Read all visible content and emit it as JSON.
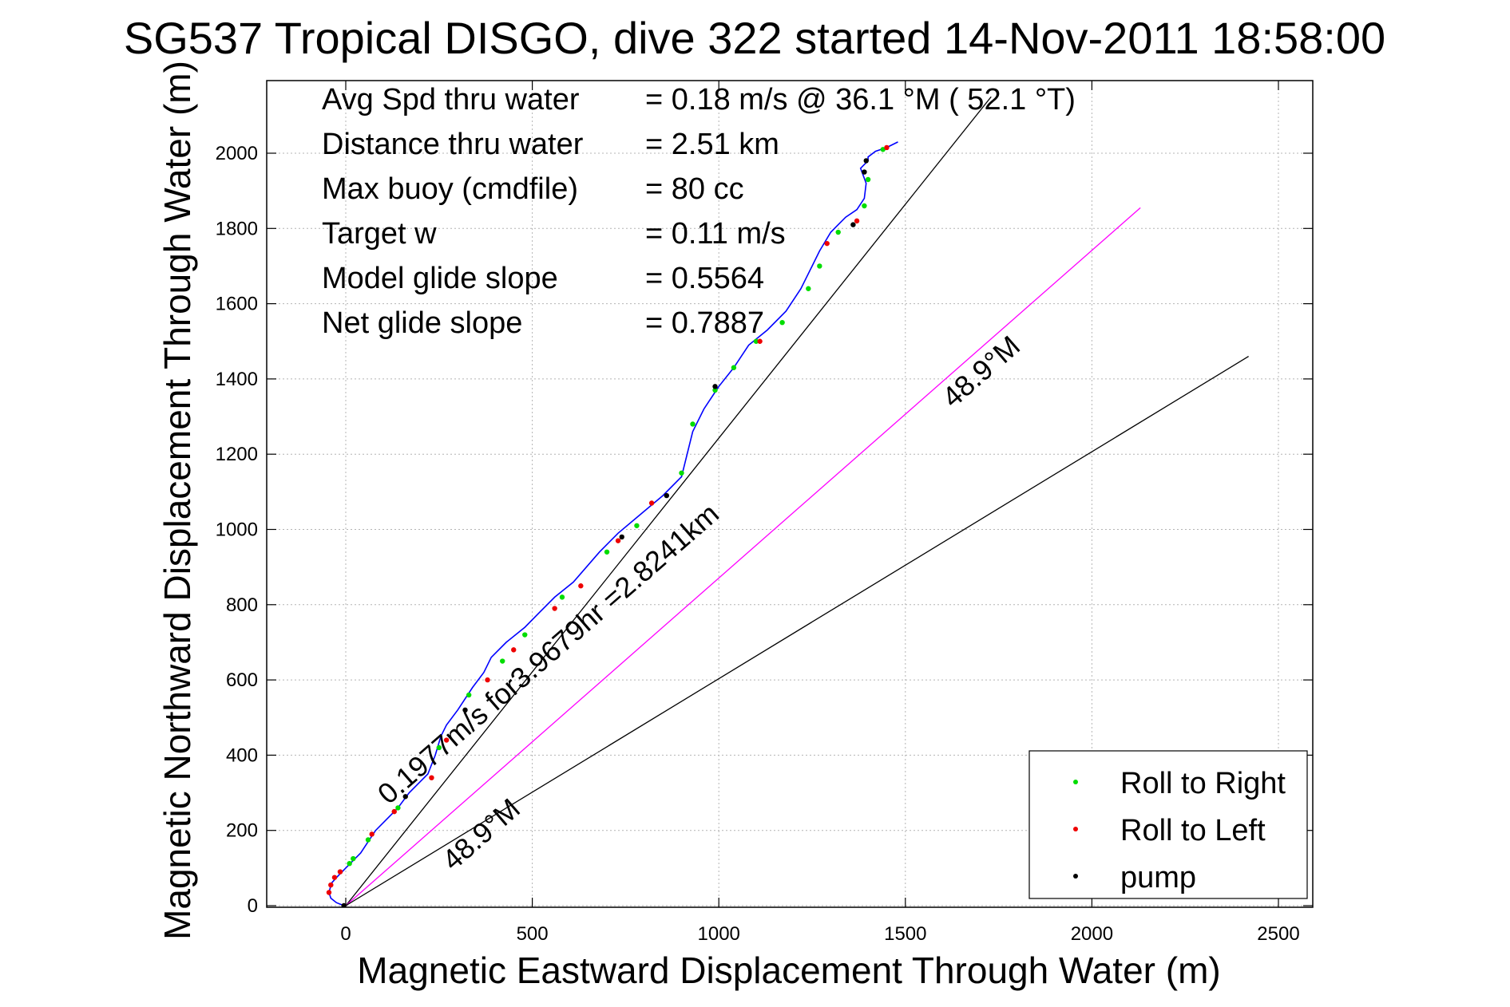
{
  "chart_data": {
    "type": "scatter",
    "title": "SG537 Tropical DISGO, dive 322 started 14-Nov-2011 18:58:00",
    "xlabel": "Magnetic Eastward Displacement Through Water (m)",
    "ylabel": "Magnetic Northward Displacement Through Water (m)",
    "xlim": [
      -200,
      2600
    ],
    "ylim": [
      -30,
      2200
    ],
    "x_ticks": [
      0,
      500,
      1000,
      1500,
      2000,
      2500
    ],
    "y_ticks": [
      0,
      200,
      400,
      600,
      800,
      1000,
      1200,
      1400,
      1600,
      1800,
      2000
    ],
    "grid": true,
    "legend_position": "bottom-right",
    "stats": [
      {
        "label": "Avg Spd thru water",
        "value": "=  0.18 m/s @  36.1 °M ( 52.1 °T)"
      },
      {
        "label": "Distance thru water",
        "value": "=  2.51 km"
      },
      {
        "label": "Max buoy (cmdfile)",
        "value": "= 80 cc"
      },
      {
        "label": "Target w",
        "value": "= 0.11 m/s"
      },
      {
        "label": "Model glide slope",
        "value": "= 0.5564"
      },
      {
        "label": "Net glide slope",
        "value": "= 0.7887"
      }
    ],
    "series": [
      {
        "name": "Roll to Right",
        "color": "#00dd00",
        "marker": "dot"
      },
      {
        "name": "Roll to Left",
        "color": "#ee0000",
        "marker": "dot"
      },
      {
        "name": "pump",
        "color": "#000000",
        "marker": "dot"
      }
    ],
    "track": {
      "color": "#0000ff",
      "x": [
        -5,
        -25,
        -40,
        -45,
        -38,
        -20,
        -5,
        10,
        20,
        40,
        60,
        80,
        110,
        140,
        170,
        200,
        220,
        240,
        255,
        270,
        300,
        340,
        370,
        390,
        430,
        480,
        520,
        560,
        610,
        680,
        730,
        790,
        850,
        900,
        915,
        930,
        960,
        1000,
        1040,
        1080,
        1130,
        1180,
        1220,
        1250,
        1270,
        1300,
        1320,
        1340,
        1370,
        1390,
        1395,
        1380,
        1400,
        1400,
        1420,
        1450,
        1480
      ],
      "y": [
        0,
        8,
        20,
        35,
        60,
        80,
        95,
        110,
        120,
        140,
        170,
        200,
        230,
        260,
        300,
        330,
        350,
        400,
        450,
        480,
        520,
        580,
        620,
        660,
        700,
        740,
        780,
        820,
        860,
        940,
        990,
        1040,
        1090,
        1140,
        1200,
        1260,
        1320,
        1380,
        1430,
        1490,
        1530,
        1580,
        1640,
        1700,
        1740,
        1790,
        1810,
        1830,
        1850,
        1880,
        1920,
        1960,
        1980,
        1990,
        2005,
        2015,
        2030
      ]
    },
    "roll_right_x": [
      10,
      20,
      60,
      140,
      250,
      330,
      420,
      480,
      580,
      700,
      780,
      900,
      930,
      990,
      1040,
      1100,
      1170,
      1240,
      1270,
      1320,
      1390,
      1400,
      1440
    ],
    "roll_right_y": [
      112,
      125,
      175,
      260,
      420,
      560,
      650,
      720,
      820,
      940,
      1010,
      1150,
      1280,
      1370,
      1430,
      1500,
      1550,
      1640,
      1700,
      1790,
      1860,
      1930,
      2010
    ],
    "roll_left_x": [
      -45,
      -40,
      -30,
      -15,
      70,
      130,
      230,
      270,
      380,
      450,
      560,
      630,
      730,
      820,
      1110,
      1290,
      1370,
      1450
    ],
    "roll_left_y": [
      35,
      55,
      75,
      90,
      190,
      250,
      340,
      440,
      600,
      680,
      790,
      850,
      970,
      1070,
      1500,
      1760,
      1820,
      2015
    ],
    "pump_x": [
      -5,
      160,
      320,
      740,
      860,
      990,
      1360,
      1390,
      1395
    ],
    "pump_y": [
      0,
      290,
      520,
      980,
      1090,
      1380,
      1810,
      1950,
      1980
    ],
    "reference_lines": [
      {
        "color": "#000000",
        "x": [
          0,
          1730
        ],
        "y": [
          0,
          2150
        ]
      },
      {
        "color": "#ff00ff",
        "x": [
          0,
          2130
        ],
        "y": [
          0,
          1855
        ],
        "label": "0.1977m/s for3.9679hr =2.8241km"
      },
      {
        "color": "#000000",
        "x": [
          0,
          2420
        ],
        "y": [
          0,
          1460
        ]
      }
    ],
    "annotations": [
      {
        "text": "48.9°M",
        "x": 1720,
        "y": 1400,
        "angle": -41
      },
      {
        "text": "0.1977m/s for3.9679hr =2.8241km",
        "x": 560,
        "y": 650,
        "angle": -41
      },
      {
        "text": "48.9°M",
        "x": 380,
        "y": 170,
        "angle": -41
      }
    ]
  }
}
